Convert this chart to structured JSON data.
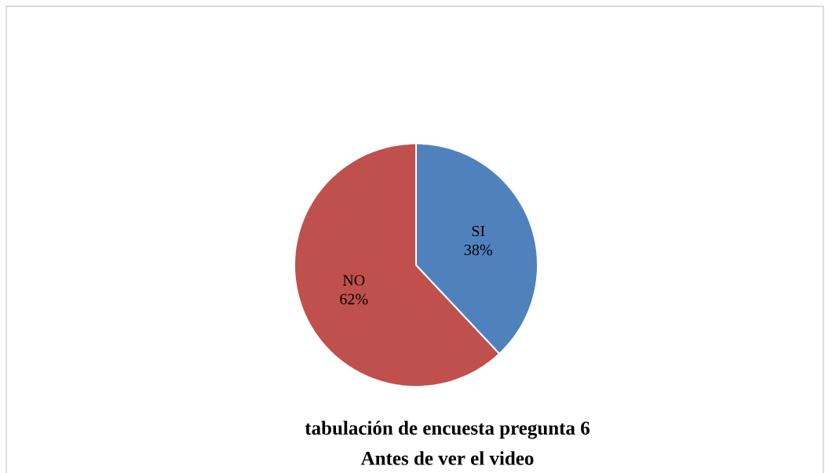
{
  "chart_data": {
    "type": "pie",
    "title": "tabulación de encuesta pregunta 6",
    "subtitle": "Antes de ver el video",
    "categories": [
      "SI",
      "NO"
    ],
    "values": [
      38,
      62
    ],
    "value_labels": [
      "38%",
      "62%"
    ],
    "colors": [
      "#4f81bd",
      "#c0504d"
    ]
  }
}
